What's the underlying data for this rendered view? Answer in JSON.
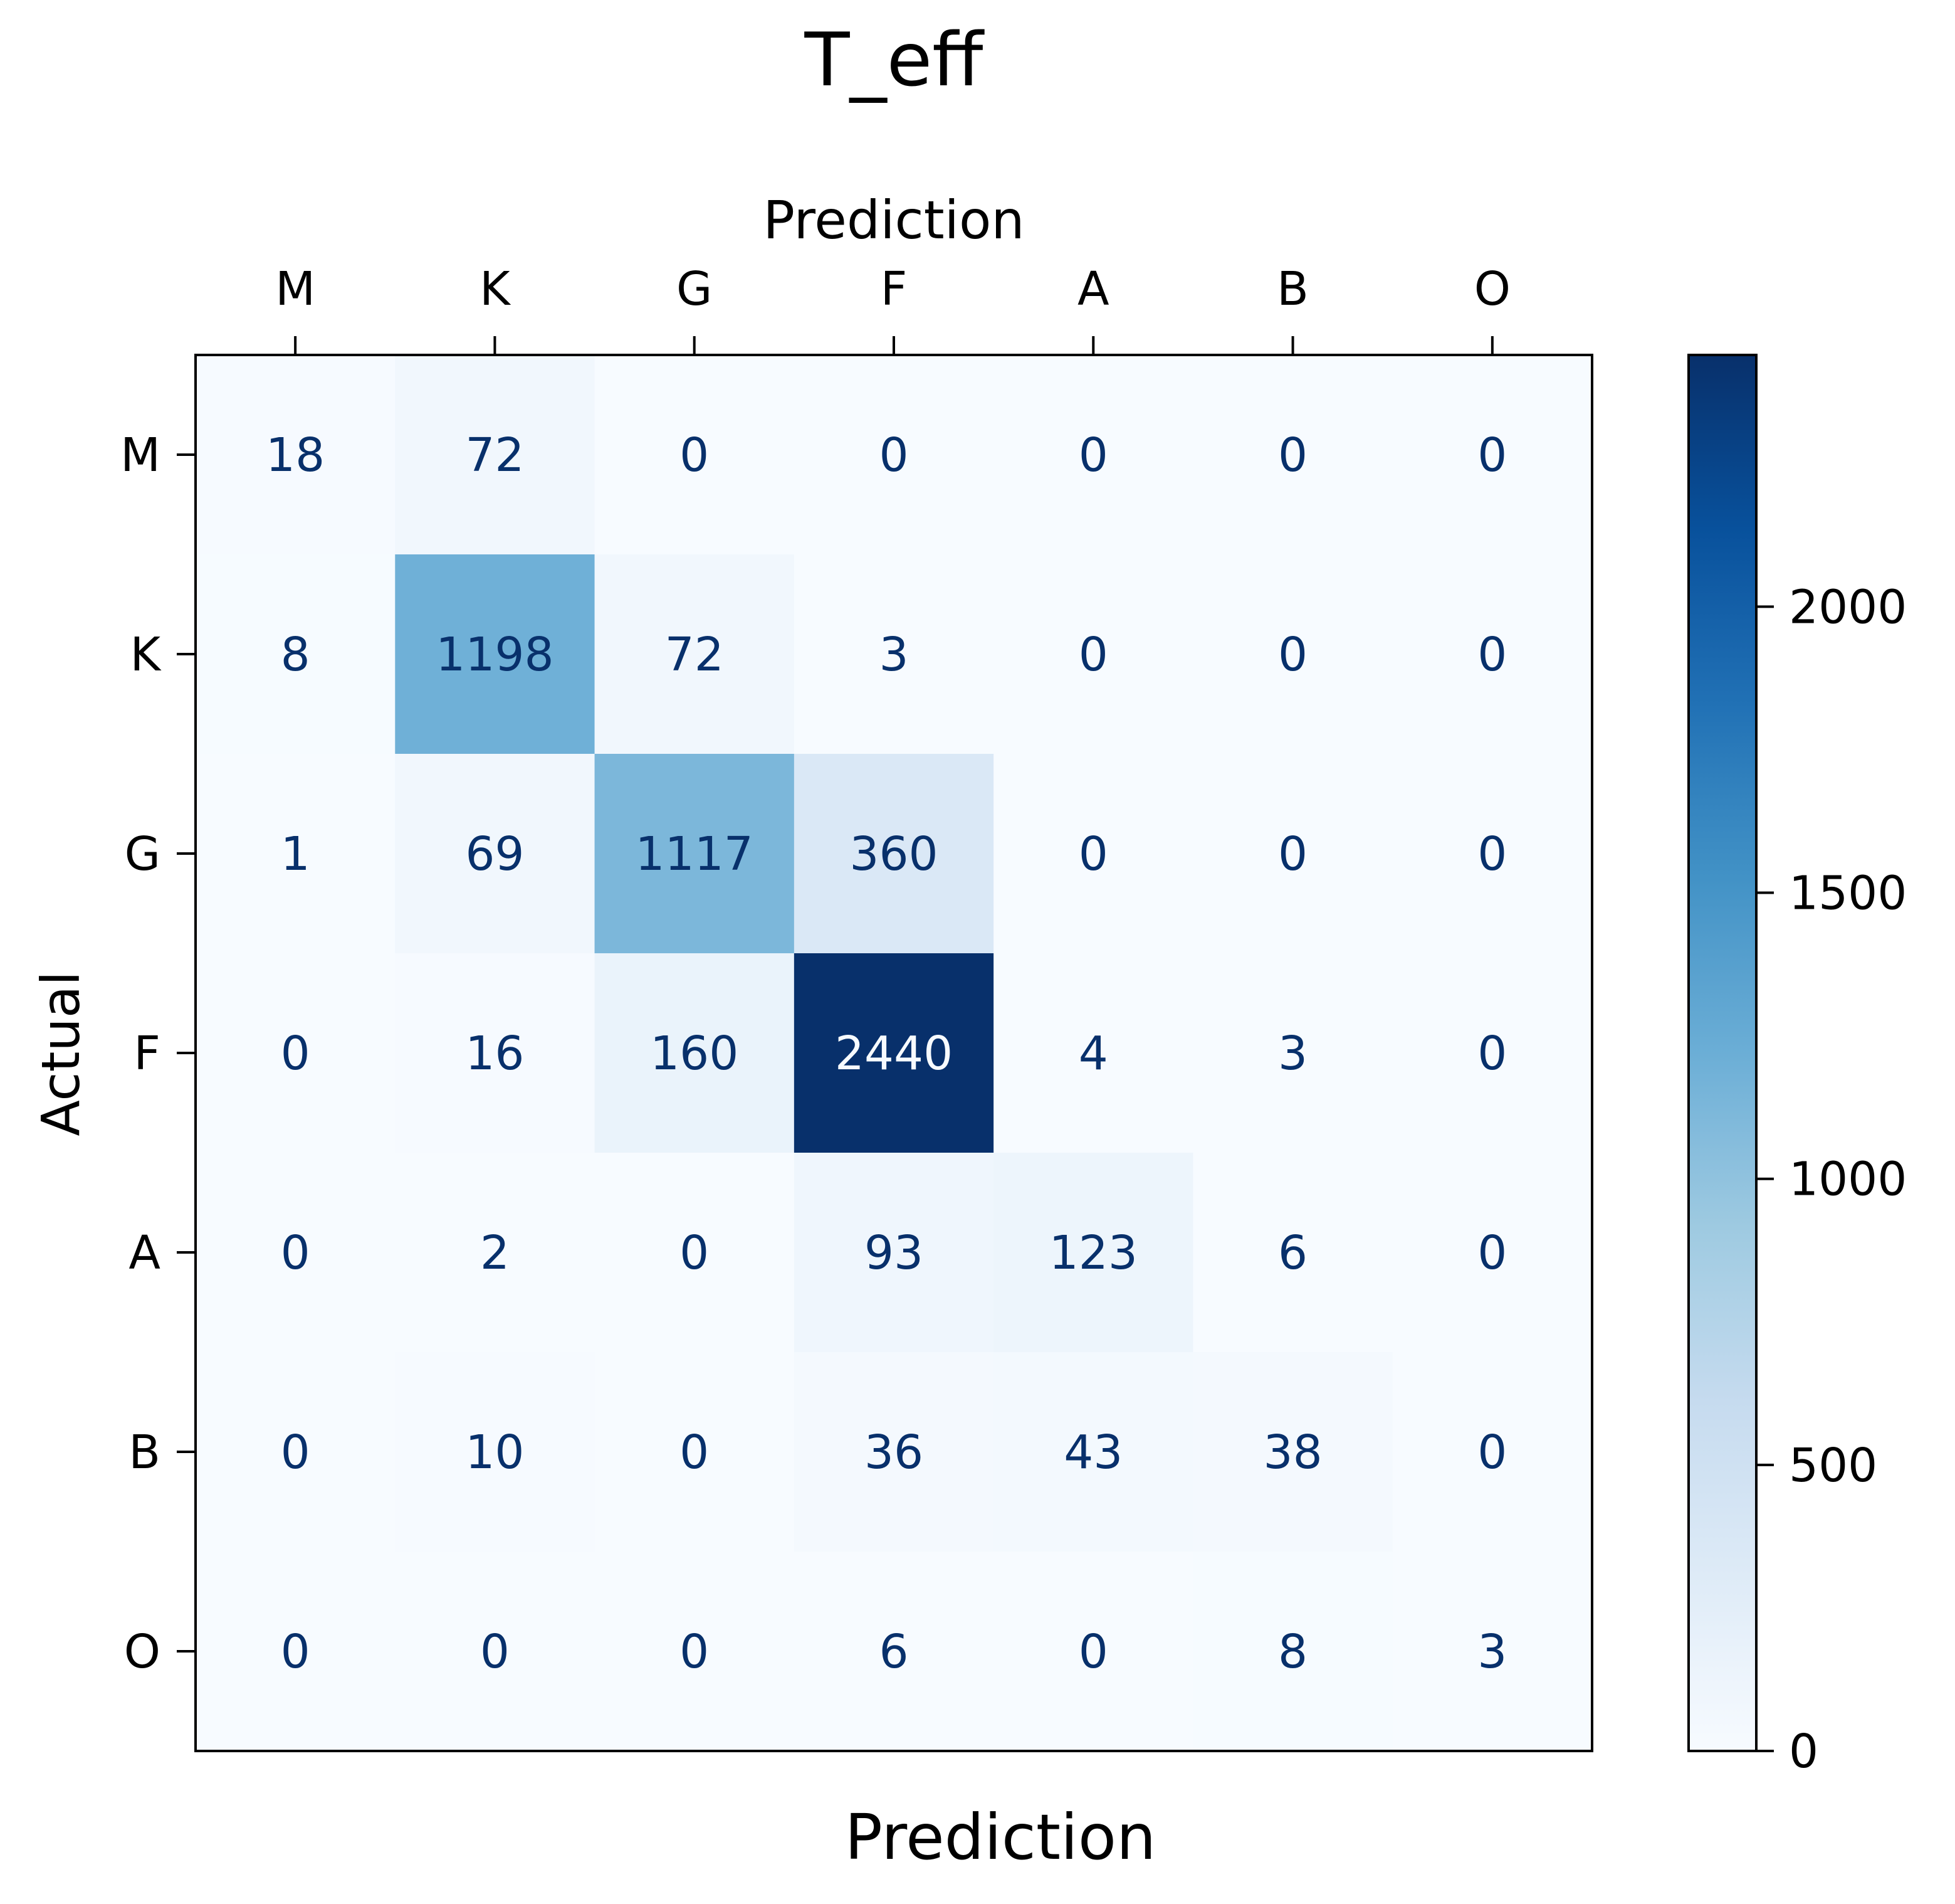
{
  "chart_data": {
    "type": "heatmap",
    "title": "T_eff",
    "xlabel_top": "Prediction",
    "xlabel_bottom": "Prediction",
    "ylabel": "Actual",
    "x_categories": [
      "M",
      "K",
      "G",
      "F",
      "A",
      "B",
      "O"
    ],
    "y_categories": [
      "M",
      "K",
      "G",
      "F",
      "A",
      "B",
      "O"
    ],
    "values": [
      [
        18,
        72,
        0,
        0,
        0,
        0,
        0
      ],
      [
        8,
        1198,
        72,
        3,
        0,
        0,
        0
      ],
      [
        1,
        69,
        1117,
        360,
        0,
        0,
        0
      ],
      [
        0,
        16,
        160,
        2440,
        4,
        3,
        0
      ],
      [
        0,
        2,
        0,
        93,
        123,
        6,
        0
      ],
      [
        0,
        10,
        0,
        36,
        43,
        38,
        0
      ],
      [
        0,
        0,
        0,
        6,
        0,
        8,
        3
      ]
    ],
    "colormap": "Blues",
    "vmin": 0,
    "vmax": 2440,
    "colorbar_ticks": [
      0,
      500,
      1000,
      1500,
      2000
    ],
    "grid": false
  },
  "colors": {
    "text_dark": "#08306b",
    "text_light": "#f7fbff",
    "axis": "#000000"
  }
}
